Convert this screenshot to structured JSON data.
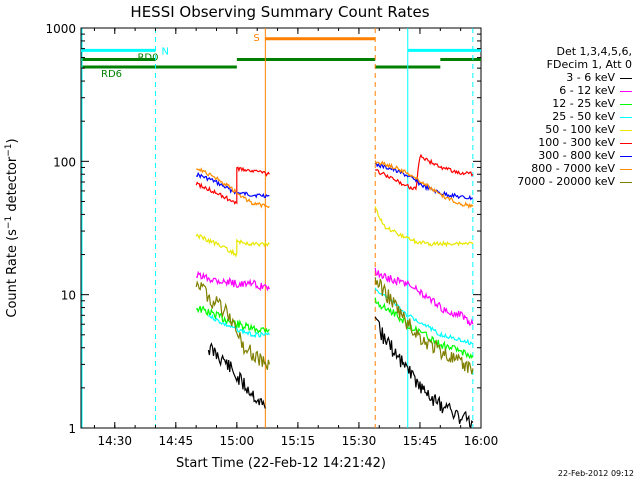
{
  "chart_data": {
    "type": "line",
    "title": "HESSI Observing Summary Count Rates",
    "xlabel": "Start Time (22-Feb-12 14:21:42)",
    "ylabel": "Count Rate (s⁻¹ detector⁻¹)",
    "yscale": "log",
    "ylim": [
      1,
      1000
    ],
    "xlim": [
      "14:21:42",
      "16:00:00"
    ],
    "x_ticks": [
      "14:30",
      "14:45",
      "15:00",
      "15:15",
      "15:30",
      "15:45",
      "16:00"
    ],
    "y_ticks": [
      "1",
      "10",
      "100",
      "1000"
    ],
    "legend_header": [
      "Det 1,3,4,5,6,",
      "FDecim 1, Att 0"
    ],
    "legend_position": "right",
    "series": [
      {
        "name": "3 - 6 keV",
        "color": "#000000",
        "seg1": [
          [
            "14:53",
            "4.0"
          ],
          [
            "14:57",
            "3.2"
          ],
          [
            "15:00",
            "2.4"
          ],
          [
            "15:04",
            "1.8"
          ],
          [
            "15:07",
            "1.4"
          ]
        ],
        "seg2": [
          [
            "15:34",
            "6"
          ],
          [
            "15:38",
            "4"
          ],
          [
            "15:42",
            "2.8"
          ],
          [
            "15:46",
            "1.9"
          ],
          [
            "15:50",
            "1.5"
          ],
          [
            "15:55",
            "1.2"
          ],
          [
            "15:58",
            "1.1"
          ]
        ]
      },
      {
        "name": "6 - 12 keV",
        "color": "#ff00ff",
        "seg1": [
          [
            "14:50",
            "14"
          ],
          [
            "14:55",
            "13"
          ],
          [
            "15:00",
            "12"
          ],
          [
            "15:04",
            "12"
          ],
          [
            "15:08",
            "11"
          ]
        ],
        "seg2": [
          [
            "15:34",
            "15"
          ],
          [
            "15:38",
            "13"
          ],
          [
            "15:42",
            "12"
          ],
          [
            "15:46",
            "10"
          ],
          [
            "15:50",
            "8"
          ],
          [
            "15:55",
            "7"
          ],
          [
            "15:58",
            "6"
          ]
        ]
      },
      {
        "name": "12 - 25 keV",
        "color": "#00ff00",
        "seg1": [
          [
            "14:50",
            "8"
          ],
          [
            "14:55",
            "7"
          ],
          [
            "15:00",
            "6"
          ],
          [
            "15:04",
            "5.5"
          ],
          [
            "15:08",
            "5.5"
          ]
        ],
        "seg2": [
          [
            "15:34",
            "9"
          ],
          [
            "15:38",
            "7.5"
          ],
          [
            "15:42",
            "6"
          ],
          [
            "15:46",
            "5"
          ],
          [
            "15:50",
            "4.2"
          ],
          [
            "15:55",
            "3.8"
          ],
          [
            "15:58",
            "3.5"
          ]
        ]
      },
      {
        "name": "25 - 50 keV",
        "color": "#00ffff",
        "seg1": [
          [
            "14:53",
            "7"
          ],
          [
            "14:57",
            "6"
          ],
          [
            "15:00",
            "5.5"
          ],
          [
            "15:04",
            "5"
          ],
          [
            "15:08",
            "5"
          ]
        ],
        "seg2": [
          [
            "15:34",
            "11"
          ],
          [
            "15:38",
            "9"
          ],
          [
            "15:42",
            "7"
          ],
          [
            "15:46",
            "6"
          ],
          [
            "15:50",
            "5"
          ],
          [
            "15:55",
            "4.6"
          ],
          [
            "15:58",
            "4.3"
          ]
        ]
      },
      {
        "name": "50 - 100 keV",
        "color": "#e8e800",
        "seg1": [
          [
            "14:50",
            "28"
          ],
          [
            "14:55",
            "24"
          ],
          [
            "15:00",
            "20"
          ],
          [
            "15:00",
            "25"
          ],
          [
            "15:04",
            "24"
          ],
          [
            "15:08",
            "24"
          ]
        ],
        "seg2": [
          [
            "15:34",
            "45"
          ],
          [
            "15:36",
            "33"
          ],
          [
            "15:40",
            "28"
          ],
          [
            "15:44",
            "25"
          ],
          [
            "15:48",
            "24"
          ],
          [
            "15:53",
            "24"
          ],
          [
            "15:58",
            "24"
          ]
        ]
      },
      {
        "name": "100 - 300 keV",
        "color": "#ff0000",
        "seg1": [
          [
            "14:50",
            "68"
          ],
          [
            "14:54",
            "60"
          ],
          [
            "14:58",
            "52"
          ],
          [
            "15:00",
            "48"
          ],
          [
            "15:00",
            "88"
          ],
          [
            "15:04",
            "85"
          ],
          [
            "15:08",
            "80"
          ]
        ],
        "seg2": [
          [
            "15:34",
            "85"
          ],
          [
            "15:38",
            "75"
          ],
          [
            "15:42",
            "65"
          ],
          [
            "15:44",
            "62"
          ],
          [
            "15:45",
            "110"
          ],
          [
            "15:50",
            "90"
          ],
          [
            "15:55",
            "82"
          ],
          [
            "15:58",
            "80"
          ]
        ]
      },
      {
        "name": "300 - 800 keV",
        "color": "#0000ff",
        "seg1": [
          [
            "14:50",
            "80"
          ],
          [
            "14:54",
            "72"
          ],
          [
            "14:58",
            "62"
          ],
          [
            "15:00",
            "58"
          ],
          [
            "15:04",
            "56"
          ],
          [
            "15:08",
            "55"
          ]
        ],
        "seg2": [
          [
            "15:34",
            "95"
          ],
          [
            "15:38",
            "88"
          ],
          [
            "15:42",
            "78"
          ],
          [
            "15:46",
            "65"
          ],
          [
            "15:50",
            "58"
          ],
          [
            "15:55",
            "54"
          ],
          [
            "15:58",
            "53"
          ]
        ]
      },
      {
        "name": "800 - 7000 keV",
        "color": "#ff8c00",
        "seg1": [
          [
            "14:50",
            "90"
          ],
          [
            "14:54",
            "78"
          ],
          [
            "14:58",
            "65"
          ],
          [
            "15:00",
            "58"
          ],
          [
            "15:04",
            "48"
          ],
          [
            "15:08",
            "46"
          ]
        ],
        "seg2": [
          [
            "15:34",
            "100"
          ],
          [
            "15:38",
            "92"
          ],
          [
            "15:42",
            "82"
          ],
          [
            "15:46",
            "68"
          ],
          [
            "15:50",
            "56"
          ],
          [
            "15:55",
            "48"
          ],
          [
            "15:58",
            "46"
          ]
        ]
      },
      {
        "name": "7000 - 20000 keV",
        "color": "#808000",
        "seg1": [
          [
            "14:50",
            "13"
          ],
          [
            "14:54",
            "9"
          ],
          [
            "14:58",
            "7"
          ],
          [
            "15:02",
            "4"
          ],
          [
            "15:06",
            "3.2"
          ],
          [
            "15:08",
            "3"
          ]
        ],
        "seg2": [
          [
            "15:34",
            "13"
          ],
          [
            "15:38",
            "9"
          ],
          [
            "15:42",
            "6"
          ],
          [
            "15:46",
            "4.5"
          ],
          [
            "15:50",
            "3.8"
          ],
          [
            "15:55",
            "3"
          ],
          [
            "15:58",
            "2.8"
          ]
        ]
      }
    ],
    "annotations": [
      {
        "label": "N",
        "color": "#00ffff",
        "from": "14:21:42",
        "to": "14:40",
        "level": 680
      },
      {
        "label": "RD0",
        "color": "#008000",
        "from": "14:21:42",
        "to": "14:40",
        "level": 580
      },
      {
        "label": "RD6",
        "color": "#008000",
        "from": "14:21:42",
        "to": "14:40",
        "level": 510
      },
      {
        "label": "S",
        "color": "#ff8000",
        "from": "15:07",
        "to": "15:34",
        "level": 830
      },
      {
        "label": "",
        "color": "#008000",
        "from": "15:00",
        "to": "15:34",
        "level": 580
      },
      {
        "label": "",
        "color": "#00ffff",
        "from": "15:42",
        "to": "16:00",
        "level": 680
      },
      {
        "label": "",
        "color": "#008000",
        "from": "15:50",
        "to": "16:00",
        "level": 580
      },
      {
        "label": "",
        "color": "#008000",
        "from": "14:40",
        "to": "15:00",
        "level": 510
      },
      {
        "label": "",
        "color": "#008000",
        "from": "15:34",
        "to": "15:50",
        "level": 510
      }
    ],
    "vlines": [
      {
        "time": "14:40",
        "color": "#00ffff",
        "dash": true
      },
      {
        "time": "15:07",
        "color": "#ff8000",
        "dash": false
      },
      {
        "time": "15:34",
        "color": "#ff8000",
        "dash": true
      },
      {
        "time": "15:42",
        "color": "#00ffff",
        "dash": false
      },
      {
        "time": "15:58",
        "color": "#00ffff",
        "dash": true
      }
    ]
  },
  "footer": {
    "date": "22-Feb-2012 09:12"
  }
}
